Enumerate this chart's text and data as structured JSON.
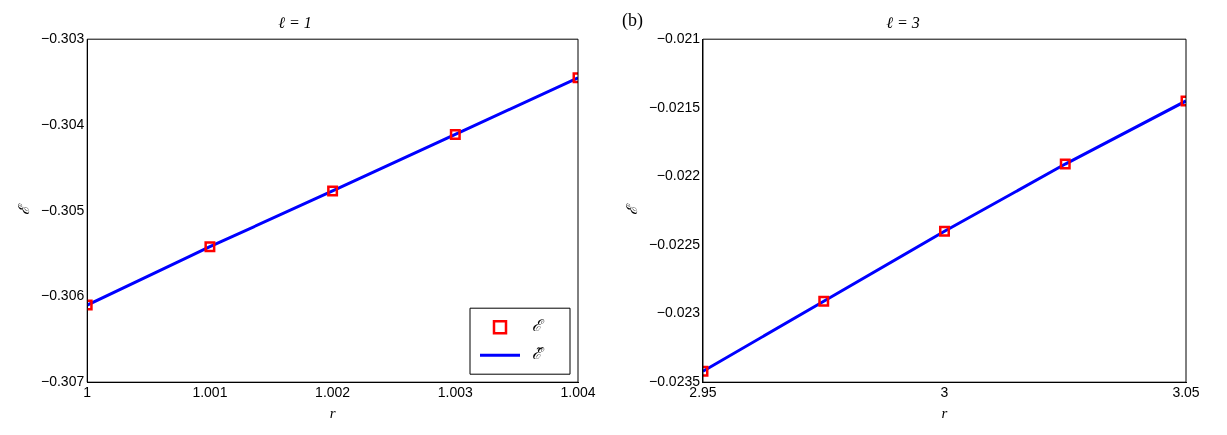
{
  "chart_data": [
    {
      "type": "scatter",
      "title": "ℓ = 1",
      "xlabel": "r",
      "ylabel": "ℰ",
      "xlim": [
        1,
        1.004
      ],
      "xticks": [
        1,
        1.001,
        1.002,
        1.003,
        1.004
      ],
      "ylim": [
        -0.307,
        -0.303
      ],
      "yticks": [
        {
          "value": -0.307,
          "label": "−0.307"
        },
        {
          "value": -0.306,
          "label": "−0.306"
        },
        {
          "value": -0.305,
          "label": "−0.305"
        },
        {
          "value": -0.304,
          "label": "−0.304"
        },
        {
          "value": -0.303,
          "label": "−0.303"
        }
      ],
      "x": [
        1,
        1.001,
        1.002,
        1.003,
        1.004
      ],
      "legend": "bottom right",
      "grid": false,
      "series": [
        {
          "name": "ℰ",
          "marker": "square",
          "color": "#ff0000",
          "values": [
            -0.3061,
            -0.30542,
            -0.30477,
            -0.30411,
            -0.30345
          ]
        },
        {
          "name": "ℰ̃",
          "type": "line",
          "marker": "none",
          "color": "#0000ff",
          "values": [
            -0.3061,
            -0.30542,
            -0.30477,
            -0.30411,
            -0.30345
          ]
        }
      ]
    },
    {
      "type": "scatter",
      "title": "ℓ = 3",
      "xlabel": "r",
      "ylabel": "ℰ",
      "annotations": [
        "(b)"
      ],
      "xlim": [
        2.95,
        3.05
      ],
      "xticks": [
        2.95,
        3,
        3.05
      ],
      "ylim": [
        -0.0235,
        -0.021
      ],
      "yticks": [
        {
          "value": -0.0235,
          "label": "−0.0235"
        },
        {
          "value": -0.023,
          "label": "−0.023"
        },
        {
          "value": -0.0225,
          "label": "−0.0225"
        },
        {
          "value": -0.022,
          "label": "−0.022"
        },
        {
          "value": -0.0215,
          "label": "−0.0215"
        },
        {
          "value": -0.021,
          "label": "−0.021"
        }
      ],
      "x": [
        2.95,
        2.975,
        3,
        3.025,
        3.05
      ],
      "grid": false,
      "series": [
        {
          "marker": "square",
          "color": "#ff0000",
          "values": [
            -0.02342,
            -0.02291,
            -0.0224,
            -0.02191,
            -0.02145
          ]
        },
        {
          "type": "line",
          "marker": "none",
          "color": "#0000ff",
          "values": [
            -0.02342,
            -0.02291,
            -0.0224,
            -0.02191,
            -0.02145
          ]
        }
      ]
    }
  ]
}
